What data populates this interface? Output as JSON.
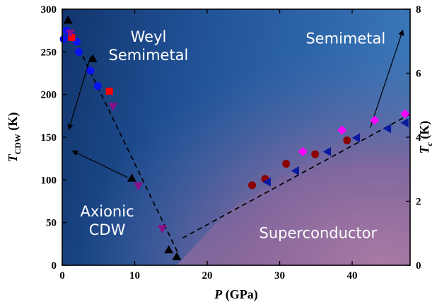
{
  "chart_data": {
    "type": "scatter",
    "title": "",
    "xlabel": {
      "symbol": "P",
      "unit": " (GPa)"
    },
    "ylabel_left": {
      "symbol": "T",
      "sub": "CDW",
      "unit": " (K)"
    },
    "ylabel_right": {
      "symbol": "T",
      "sub": "c",
      "unit": " (K)"
    },
    "xlim": [
      0,
      48
    ],
    "ylim_left": [
      0,
      300
    ],
    "ylim_right": [
      0,
      8
    ],
    "x_ticks": [
      0,
      10,
      20,
      30,
      40
    ],
    "y_left_ticks": [
      0,
      50,
      100,
      150,
      200,
      250,
      300
    ],
    "y_right_ticks": [
      0,
      2,
      4,
      6,
      8
    ],
    "regions": [
      {
        "lines": [
          "Weyl",
          "Semimetal"
        ],
        "x": 11.9,
        "y": 262
      },
      {
        "lines": [
          "Semimetal"
        ],
        "x": 39.1,
        "y": 260
      },
      {
        "lines": [
          "Axionic",
          "CDW"
        ],
        "x": 6.2,
        "y": 57
      },
      {
        "lines": [
          "Superconductor"
        ],
        "x": 35.3,
        "y": 32
      }
    ],
    "series": [
      {
        "marker": "triangle-up",
        "color": "#000000",
        "axis": "left",
        "x": [
          0.8,
          4.2,
          9.6,
          14.7,
          15.8
        ],
        "y": [
          287,
          242,
          102,
          18,
          10
        ]
      },
      {
        "marker": "circle",
        "color": "#0a14ee",
        "axis": "left",
        "x": [
          0.2,
          0.6,
          1.2,
          2.0,
          2.3,
          3.9,
          4.9
        ],
        "y": [
          265,
          275,
          270,
          262,
          250,
          228,
          210
        ]
      },
      {
        "marker": "square",
        "color": "#ff0000",
        "axis": "left",
        "x": [
          1.3,
          6.5
        ],
        "y": [
          267,
          204
        ]
      },
      {
        "marker": "triangle-down",
        "color": "#8b0e8b",
        "axis": "left",
        "x": [
          1.1,
          7.0,
          10.5,
          13.8
        ],
        "y": [
          272,
          186,
          93,
          43
        ]
      },
      {
        "marker": "circle",
        "color": "#8b0000",
        "axis": "right",
        "x": [
          26.2,
          28.0,
          30.9,
          34.9,
          39.3
        ],
        "y": [
          2.5,
          2.7,
          3.17,
          3.47,
          3.9
        ]
      },
      {
        "marker": "triangle-left",
        "color": "#0a1a9f",
        "axis": "right",
        "x": [
          28.3,
          32.2,
          36.6,
          40.6,
          44.9,
          47.3
        ],
        "y": [
          2.6,
          2.95,
          3.55,
          3.98,
          4.27,
          4.45
        ]
      },
      {
        "marker": "diamond",
        "color": "#ff00ff",
        "axis": "right",
        "x": [
          33.2,
          38.6,
          43.1,
          47.3
        ],
        "y": [
          3.55,
          4.22,
          4.53,
          4.73
        ]
      }
    ],
    "dashed_lines": [
      {
        "axis": "left",
        "x": [
          1.3,
          16.1
        ],
        "y": [
          272,
          12
        ]
      },
      {
        "axis": "right",
        "x": [
          16.6,
          48
        ],
        "y": [
          0.85,
          4.72
        ]
      }
    ],
    "arrows": [
      {
        "axis": "left",
        "x": [
          3.9,
          0.9
        ],
        "y": [
          244,
          159
        ]
      },
      {
        "axis": "left",
        "x": [
          9.0,
          1.4
        ],
        "y": [
          103,
          134
        ]
      },
      {
        "axis": "right",
        "x": [
          42.5,
          47.0
        ],
        "y": [
          4.3,
          7.35
        ]
      }
    ]
  }
}
